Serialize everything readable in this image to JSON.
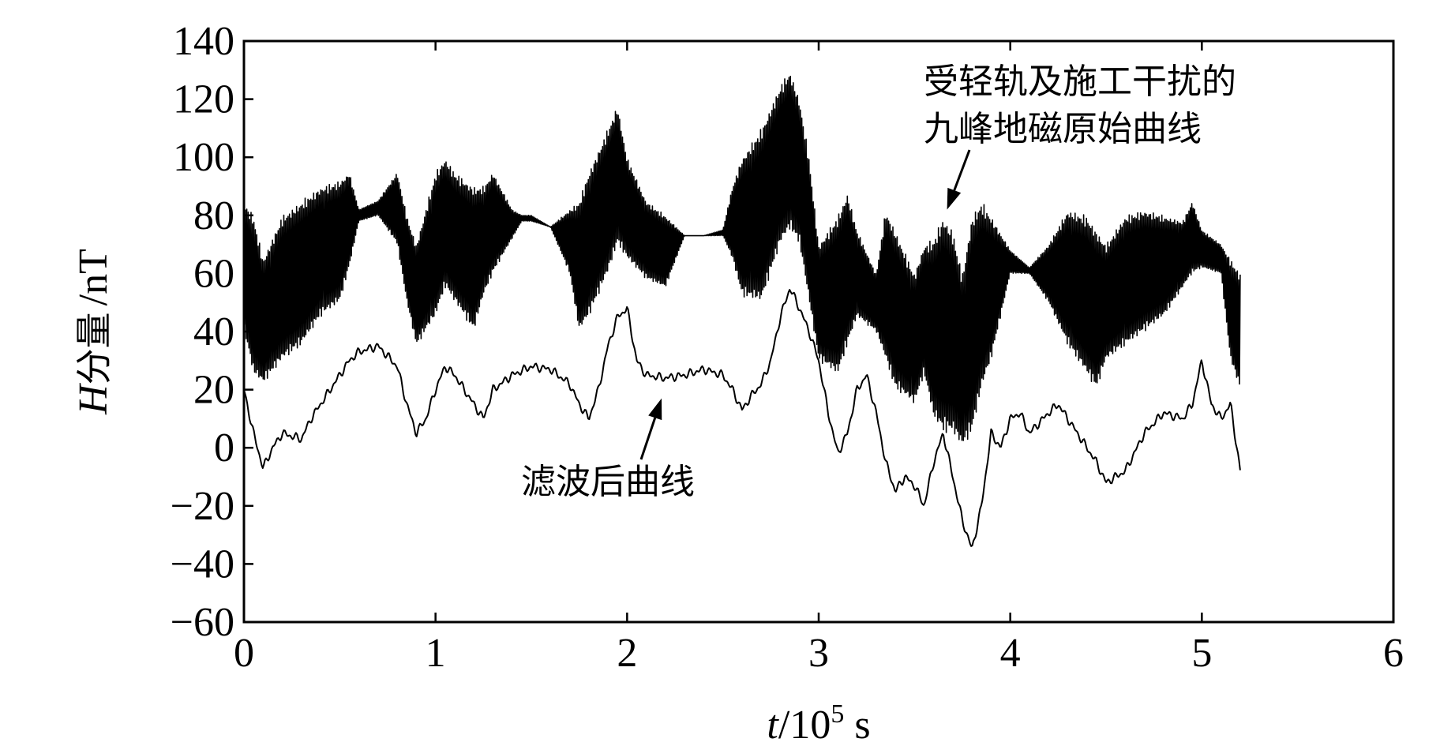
{
  "chart_data": {
    "type": "line",
    "ylabel": {
      "var": "H",
      "cn": "分量",
      "unit": "/nT"
    },
    "xlabel": {
      "var": "t",
      "base": "/10",
      "exp": "5",
      "unit": " s"
    },
    "xlim": [
      0,
      6
    ],
    "ylim": [
      -60,
      140
    ],
    "xticks": [
      "0",
      "1",
      "2",
      "3",
      "4",
      "5",
      "6"
    ],
    "yticks": [
      "140",
      "120",
      "100",
      "80",
      "60",
      "40",
      "20",
      "0",
      "−20",
      "−40",
      "−60"
    ],
    "grid": false,
    "annotations": [
      {
        "lines": [
          "受轻轨及施工干扰的",
          "九峰地磁原始曲线"
        ],
        "target": [
          3.67,
          82
        ]
      },
      {
        "lines": [
          "滤波后曲线"
        ],
        "target": [
          2.18,
          17
        ]
      }
    ],
    "series": [
      {
        "role": "raw",
        "color": "#000000",
        "x": [
          0,
          0.05,
          0.1,
          0.2,
          0.3,
          0.4,
          0.5,
          0.55,
          0.6,
          0.7,
          0.8,
          0.85,
          0.9,
          1.0,
          1.05,
          1.1,
          1.2,
          1.25,
          1.3,
          1.4,
          1.45,
          1.5,
          1.6,
          1.7,
          1.75,
          1.8,
          1.9,
          1.95,
          2.0,
          2.1,
          2.2,
          2.3,
          2.35,
          2.4,
          2.5,
          2.55,
          2.6,
          2.7,
          2.8,
          2.85,
          2.9,
          2.95,
          3.0,
          3.1,
          3.15,
          3.2,
          3.3,
          3.35,
          3.4,
          3.5,
          3.55,
          3.6,
          3.65,
          3.7,
          3.75,
          3.8,
          3.85,
          3.9,
          4.0,
          4.1,
          4.2,
          4.3,
          4.4,
          4.45,
          4.5,
          4.6,
          4.7,
          4.8,
          4.9,
          4.95,
          5.0,
          5.1,
          5.15,
          5.2
        ],
        "low": [
          40,
          25,
          22,
          30,
          35,
          45,
          50,
          62,
          78,
          80,
          70,
          50,
          35,
          45,
          55,
          50,
          40,
          52,
          60,
          72,
          78,
          78,
          76,
          60,
          40,
          45,
          60,
          70,
          65,
          58,
          55,
          73,
          73,
          73,
          73,
          65,
          52,
          50,
          70,
          75,
          70,
          50,
          30,
          25,
          35,
          45,
          40,
          30,
          20,
          15,
          25,
          10,
          5,
          5,
          0,
          5,
          20,
          30,
          60,
          60,
          50,
          35,
          25,
          20,
          30,
          35,
          40,
          45,
          55,
          60,
          62,
          60,
          30,
          20
        ],
        "high": [
          85,
          80,
          65,
          80,
          85,
          90,
          92,
          95,
          82,
          85,
          95,
          80,
          70,
          95,
          100,
          95,
          90,
          90,
          95,
          82,
          80,
          80,
          76,
          82,
          85,
          95,
          110,
          118,
          100,
          85,
          80,
          73,
          73,
          73,
          75,
          90,
          100,
          110,
          125,
          130,
          120,
          100,
          70,
          80,
          88,
          75,
          60,
          82,
          75,
          60,
          70,
          72,
          80,
          75,
          60,
          80,
          85,
          80,
          68,
          62,
          70,
          82,
          80,
          75,
          70,
          80,
          82,
          80,
          78,
          85,
          75,
          70,
          65,
          60
        ]
      },
      {
        "role": "filtered",
        "color": "#000000",
        "x": [
          0,
          0.05,
          0.1,
          0.15,
          0.2,
          0.3,
          0.35,
          0.4,
          0.5,
          0.55,
          0.6,
          0.7,
          0.8,
          0.85,
          0.9,
          0.95,
          1.0,
          1.05,
          1.1,
          1.2,
          1.25,
          1.3,
          1.4,
          1.5,
          1.6,
          1.7,
          1.75,
          1.8,
          1.85,
          1.9,
          1.95,
          2.0,
          2.05,
          2.1,
          2.2,
          2.3,
          2.4,
          2.5,
          2.55,
          2.6,
          2.65,
          2.7,
          2.75,
          2.8,
          2.85,
          2.9,
          2.95,
          3.0,
          3.05,
          3.1,
          3.15,
          3.2,
          3.25,
          3.3,
          3.35,
          3.4,
          3.45,
          3.5,
          3.55,
          3.6,
          3.65,
          3.7,
          3.75,
          3.8,
          3.85,
          3.9,
          3.95,
          4.0,
          4.05,
          4.1,
          4.2,
          4.25,
          4.3,
          4.4,
          4.45,
          4.5,
          4.6,
          4.7,
          4.8,
          4.9,
          4.95,
          5.0,
          5.05,
          5.1,
          5.15,
          5.2
        ],
        "y": [
          20,
          5,
          -7,
          0,
          5,
          3,
          10,
          15,
          25,
          30,
          33,
          35,
          28,
          15,
          5,
          10,
          20,
          28,
          25,
          15,
          10,
          20,
          25,
          28,
          27,
          22,
          15,
          10,
          20,
          35,
          45,
          48,
          30,
          25,
          24,
          25,
          27,
          25,
          20,
          13,
          18,
          22,
          30,
          45,
          55,
          48,
          40,
          30,
          12,
          -2,
          5,
          20,
          25,
          12,
          -5,
          -15,
          -10,
          -13,
          -20,
          -5,
          5,
          -10,
          -25,
          -35,
          -20,
          5,
          0,
          10,
          12,
          5,
          12,
          15,
          10,
          0,
          -5,
          -12,
          -8,
          5,
          12,
          10,
          15,
          30,
          15,
          10,
          15,
          -8
        ]
      }
    ]
  }
}
